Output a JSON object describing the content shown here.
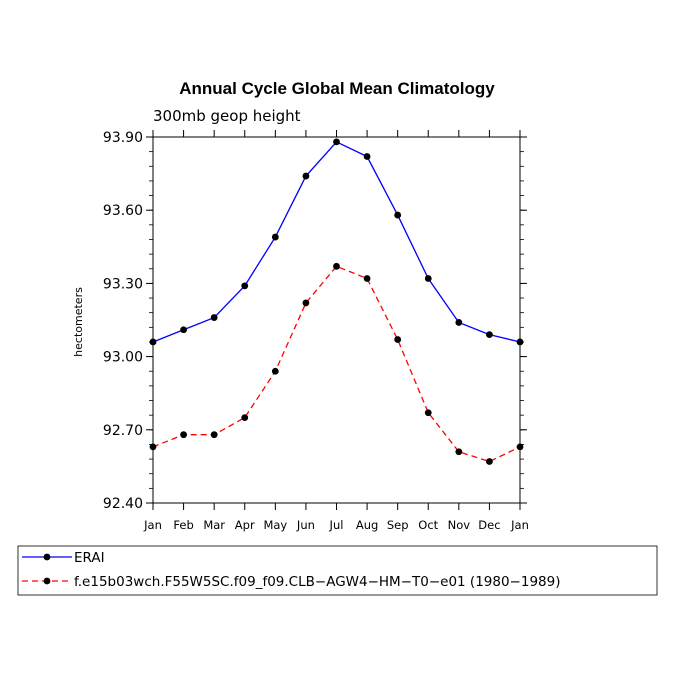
{
  "chart_data": {
    "type": "line",
    "title": "Annual Cycle Global Mean Climatology",
    "subtitle": "300mb geop height",
    "xlabel": "",
    "ylabel": "hectometers",
    "ylim": [
      92.4,
      93.9
    ],
    "yticks": [
      "92.40",
      "92.70",
      "93.00",
      "93.30",
      "93.60",
      "93.90"
    ],
    "yminor_step": 0.06,
    "categories": [
      "Jan",
      "Feb",
      "Mar",
      "Apr",
      "May",
      "Jun",
      "Jul",
      "Aug",
      "Sep",
      "Oct",
      "Nov",
      "Dec",
      "Jan"
    ],
    "series": [
      {
        "name": "ERAI",
        "color": "#0000ff",
        "dashed": false,
        "values": [
          93.06,
          93.11,
          93.16,
          93.29,
          93.49,
          93.74,
          93.88,
          93.82,
          93.58,
          93.32,
          93.14,
          93.09,
          93.06
        ]
      },
      {
        "name": "f.e15b03wch.F55W5SC.f09_f09.CLB−AGW4−HM−T0−e01 (1980−1989)",
        "color": "#ff0000",
        "dashed": true,
        "values": [
          92.63,
          92.68,
          92.68,
          92.75,
          92.94,
          93.22,
          93.37,
          93.32,
          93.07,
          92.77,
          92.61,
          92.57,
          92.63
        ]
      }
    ],
    "legend_position": "bottom"
  }
}
